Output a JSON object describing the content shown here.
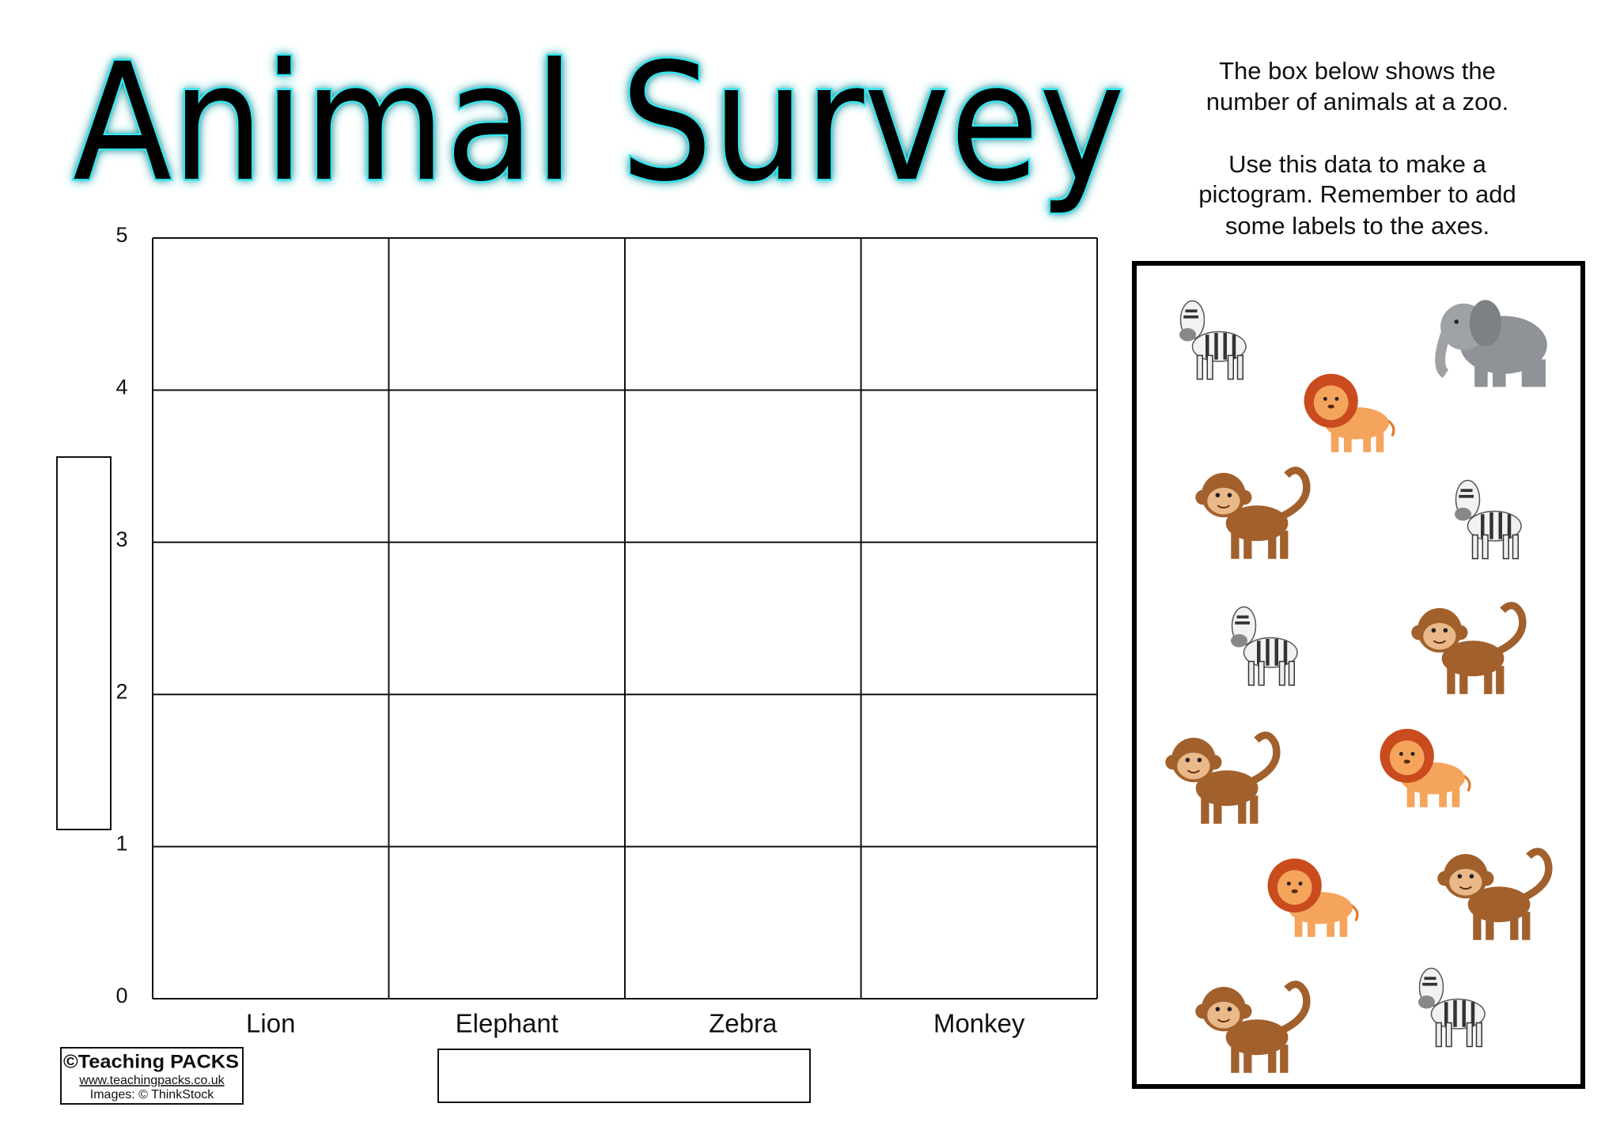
{
  "header": {
    "title": "Animal Survey"
  },
  "instructions": [
    "The box below shows the",
    "number of animals at a zoo.",
    "Use this data to make a",
    "pictogram. Remember to add",
    "some labels to the axes."
  ],
  "grid": {
    "ylim": [
      0,
      5
    ],
    "yticks": [
      0,
      1,
      2,
      3,
      4,
      5
    ],
    "categories": [
      "Lion",
      "Elephant",
      "Zebra",
      "Monkey"
    ]
  },
  "footer": {
    "logo": [
      "©Teaching PACKS",
      "www.teachingpacks.co.uk",
      "Images: © ThinkStock"
    ]
  }
}
